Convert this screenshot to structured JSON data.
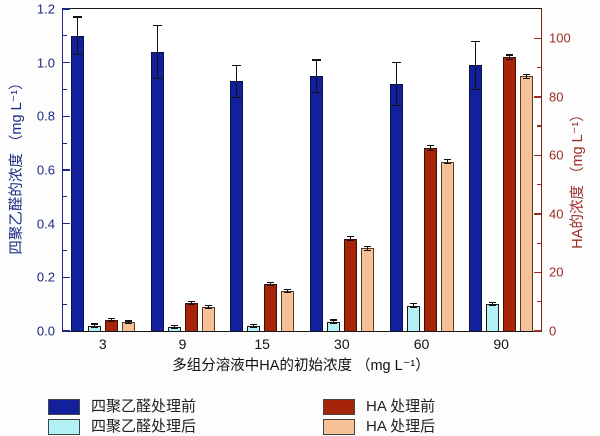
{
  "chart_data": {
    "type": "bar",
    "title": "",
    "grid": false,
    "x_axis": {
      "label": "多组分溶液中HA的初始浓度 （mg L⁻¹）",
      "categories": [
        "3",
        "9",
        "15",
        "30",
        "60",
        "90"
      ]
    },
    "left_axis": {
      "label": "四聚乙醛的浓度 （mg L⁻¹）",
      "min": 0,
      "max": 1.2,
      "major_ticks": [
        0,
        0.2,
        0.4,
        0.6,
        0.8,
        1.0,
        1.2
      ],
      "minor_step": 0.1,
      "decimals": 1,
      "color": "#1b2a80"
    },
    "right_axis": {
      "label": "HA的浓度 （mg L⁻¹）",
      "min": 0,
      "max": 110,
      "major_ticks": [
        0,
        20,
        40,
        60,
        80,
        100
      ],
      "minor_step": 10,
      "decimals": 0,
      "color": "#9b2d24"
    },
    "series": [
      {
        "id": "tetra-before",
        "name": "四聚乙醛处理前",
        "axis": "left",
        "color": "#12209e",
        "border": "#0a1040",
        "values": [
          1.1,
          1.04,
          0.93,
          0.95,
          0.92,
          0.99
        ],
        "errors": [
          0.07,
          0.1,
          0.06,
          0.06,
          0.08,
          0.09
        ]
      },
      {
        "id": "tetra-after",
        "name": "四聚乙醛处理后",
        "axis": "left",
        "color": "#b3f0f6",
        "border": "#1a1a1a",
        "values": [
          0.02,
          0.015,
          0.018,
          0.035,
          0.095,
          0.1
        ],
        "errors": [
          0.006,
          0.004,
          0.005,
          0.006,
          0.008,
          0.006
        ]
      },
      {
        "id": "ha-before",
        "name": "HA 处理前",
        "axis": "right",
        "color": "#a82408",
        "border": "#401005",
        "values": [
          3.8,
          9.5,
          16.0,
          31.6,
          62.5,
          93.5
        ],
        "errors": [
          0.5,
          0.5,
          0.5,
          0.7,
          0.8,
          0.8
        ]
      },
      {
        "id": "ha-after",
        "name": "HA 处理后",
        "axis": "right",
        "color": "#f6c197",
        "border": "#5a3a20",
        "values": [
          3.0,
          8.2,
          13.7,
          28.2,
          57.8,
          87.0
        ],
        "errors": [
          0.4,
          0.4,
          0.5,
          0.6,
          0.7,
          0.7
        ]
      }
    ],
    "legend": {
      "position": "bottom",
      "columns": [
        [
          "tetra-before",
          "tetra-after"
        ],
        [
          "ha-before",
          "ha-after"
        ]
      ]
    }
  }
}
